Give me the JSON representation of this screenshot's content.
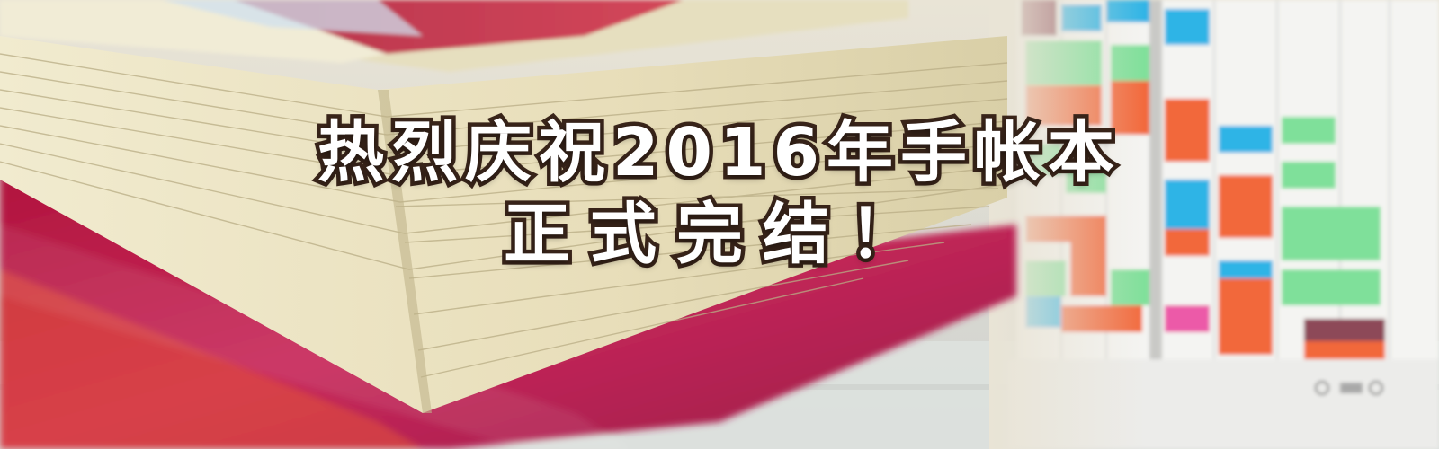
{
  "headline": {
    "line1": "热烈庆祝2016年手帐本",
    "line2": "正式完结！"
  },
  "colors": {
    "notebook_cover": "#c8285a",
    "page_paper": "#ebe3c5",
    "planner_orange": "#f2683a",
    "planner_green": "#7fe09a",
    "planner_blue": "#2fb4e6",
    "planner_pink": "#ec5aa8",
    "text_outline": "#3a251a"
  }
}
